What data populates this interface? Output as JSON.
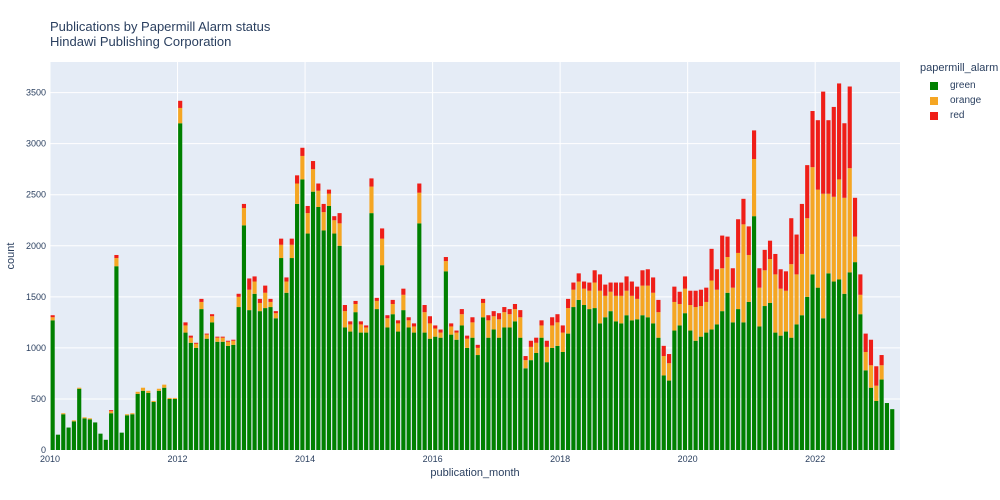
{
  "chart_data": {
    "type": "bar",
    "stacked": true,
    "title": "Publications by Papermill Alarm status",
    "subtitle": "Hindawi Publishing Corporation",
    "xlabel": "publication_month",
    "ylabel": "count",
    "legend_title": "papermill_alarm",
    "legend_position": "top-right",
    "xlim": [
      2010.0,
      2023.33
    ],
    "ylim": [
      0,
      3800
    ],
    "x_ticks": [
      "2010",
      "2012",
      "2014",
      "2016",
      "2018",
      "2020",
      "2022"
    ],
    "x_tick_values": [
      2010,
      2012,
      2014,
      2016,
      2018,
      2020,
      2022
    ],
    "y_ticks": [
      0,
      500,
      1000,
      1500,
      2000,
      2500,
      3000,
      3500
    ],
    "grid": true,
    "start_year": 2010,
    "start_month": 1,
    "series": [
      {
        "name": "green",
        "color": "#008000",
        "values": [
          1270,
          150,
          350,
          220,
          280,
          600,
          310,
          300,
          270,
          160,
          100,
          360,
          1800,
          170,
          340,
          350,
          550,
          580,
          560,
          470,
          580,
          610,
          500,
          500,
          3200,
          1150,
          1050,
          1000,
          1380,
          1090,
          1250,
          1060,
          1060,
          1020,
          1030,
          1400,
          2200,
          1370,
          1530,
          1360,
          1390,
          1400,
          1290,
          1880,
          1540,
          1880,
          2410,
          2650,
          2120,
          2530,
          2380,
          2150,
          2390,
          2120,
          2000,
          1200,
          1160,
          1350,
          1150,
          1150,
          2320,
          1380,
          1810,
          1200,
          1330,
          1160,
          1370,
          1200,
          1150,
          2220,
          1150,
          1090,
          1110,
          1100,
          1750,
          1130,
          1080,
          1220,
          1000,
          1100,
          930,
          1300,
          1100,
          1180,
          1100,
          1200,
          1200,
          1260,
          1100,
          800,
          880,
          950,
          1100,
          860,
          1000,
          1020,
          960,
          1140,
          1400,
          1470,
          1420,
          1380,
          1390,
          1240,
          1300,
          1360,
          1260,
          1240,
          1320,
          1270,
          1280,
          1320,
          1300,
          1240,
          1100,
          730,
          680,
          1170,
          1220,
          1340,
          1170,
          1070,
          1110,
          1150,
          1180,
          1230,
          1360,
          1540,
          1250,
          1380,
          1250,
          1450,
          2290,
          1210,
          1410,
          1440,
          1150,
          1120,
          1160,
          1100,
          1230,
          1320,
          1500,
          1720,
          1590,
          1290,
          1730,
          1650,
          1670,
          1530,
          1740,
          1840,
          1330,
          780,
          610,
          480,
          690,
          460,
          400
        ]
      },
      {
        "name": "orange",
        "color": "#f5a623",
        "values": [
          30,
          0,
          10,
          0,
          10,
          10,
          10,
          10,
          0,
          0,
          0,
          20,
          80,
          0,
          10,
          10,
          20,
          30,
          20,
          10,
          20,
          30,
          10,
          10,
          150,
          70,
          50,
          40,
          70,
          40,
          60,
          40,
          40,
          40,
          40,
          100,
          170,
          200,
          120,
          80,
          150,
          50,
          50,
          130,
          110,
          130,
          200,
          230,
          200,
          220,
          160,
          180,
          120,
          130,
          220,
          160,
          70,
          80,
          80,
          50,
          260,
          80,
          260,
          90,
          100,
          80,
          150,
          70,
          60,
          300,
          200,
          150,
          80,
          50,
          100,
          80,
          70,
          110,
          90,
          150,
          70,
          140,
          170,
          130,
          180,
          150,
          130,
          120,
          200,
          80,
          130,
          100,
          120,
          150,
          220,
          230,
          190,
          250,
          170,
          180,
          160,
          180,
          250,
          320,
          210,
          190,
          250,
          270,
          240,
          240,
          200,
          290,
          310,
          300,
          250,
          190,
          170,
          280,
          210,
          240,
          250,
          330,
          300,
          300,
          480,
          340,
          420,
          350,
          340,
          550,
          960,
          460,
          560,
          380,
          350,
          430,
          570,
          460,
          400,
          720,
          490,
          600,
          770,
          1050,
          960,
          1220,
          780,
          830,
          980,
          940,
          1020,
          250,
          190,
          180,
          220,
          150,
          140
        ]
      },
      {
        "name": "red",
        "color": "#ef1e18",
        "values": [
          20,
          0,
          0,
          0,
          0,
          0,
          0,
          0,
          0,
          0,
          0,
          10,
          30,
          0,
          0,
          0,
          0,
          0,
          0,
          0,
          0,
          0,
          0,
          0,
          70,
          30,
          20,
          10,
          30,
          10,
          20,
          10,
          10,
          10,
          10,
          30,
          40,
          110,
          50,
          40,
          70,
          30,
          20,
          60,
          40,
          60,
          80,
          80,
          70,
          80,
          70,
          80,
          40,
          40,
          100,
          60,
          30,
          30,
          30,
          20,
          80,
          30,
          100,
          30,
          40,
          30,
          60,
          30,
          30,
          90,
          70,
          70,
          30,
          30,
          40,
          30,
          20,
          50,
          30,
          50,
          30,
          40,
          50,
          50,
          60,
          50,
          50,
          50,
          70,
          40,
          60,
          50,
          50,
          60,
          80,
          80,
          70,
          90,
          70,
          80,
          70,
          80,
          120,
          160,
          110,
          90,
          130,
          130,
          140,
          140,
          120,
          150,
          160,
          150,
          120,
          100,
          90,
          150,
          120,
          120,
          140,
          160,
          160,
          140,
          310,
          200,
          320,
          200,
          190,
          330,
          250,
          280,
          280,
          190,
          200,
          180,
          200,
          190,
          190,
          450,
          390,
          490,
          520,
          550,
          680,
          1000,
          720,
          880,
          940,
          730,
          800,
          380,
          200,
          180,
          250,
          190,
          100
        ]
      }
    ]
  }
}
